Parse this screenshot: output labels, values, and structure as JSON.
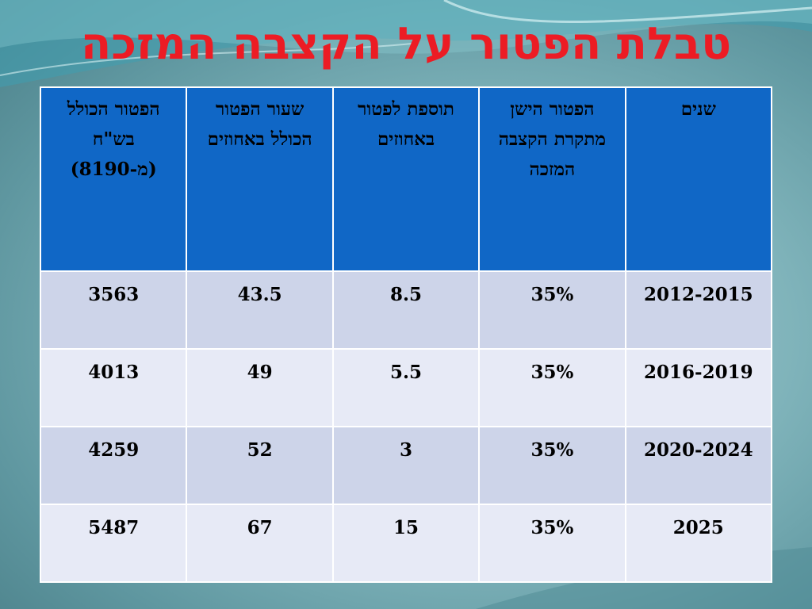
{
  "slide": {
    "title": "טבלת הפטור על הקצבה המזכה"
  },
  "table": {
    "headers": [
      "שנים",
      "הפטור הישן מתקרת הקצבה המזכה",
      "תוספת לפטור באחוזים",
      "שעור הפטור הכולל באחוזים",
      "הפטור הכולל בש\"ח (מ-8190)"
    ],
    "rows": [
      [
        "2012-2015",
        "35%",
        "8.5",
        "43.5",
        "3563"
      ],
      [
        "2016-2019",
        "35%",
        "5.5",
        "49",
        "4013"
      ],
      [
        "2020-2024",
        "35%",
        "3",
        "52",
        "4259"
      ],
      [
        "2025",
        "35%",
        "15",
        "67",
        "5487"
      ]
    ]
  },
  "colors": {
    "title": "#ec1c24",
    "header_bg": "#1067c6",
    "row_odd_bg": "#cdd4e9",
    "row_even_bg": "#e7eaf6"
  }
}
